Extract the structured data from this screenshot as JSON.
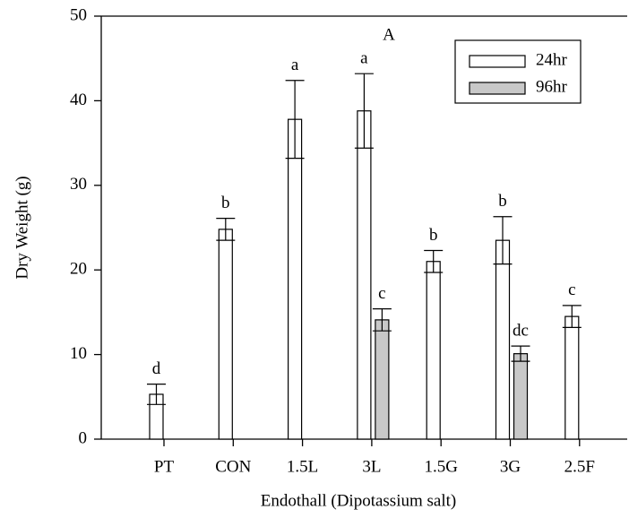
{
  "chart_data": {
    "type": "bar",
    "panel_label": "A",
    "x_label": "Endothall (Dipotassium salt)",
    "y_label": "Dry Weight (g)",
    "categories": [
      "PT",
      "CON",
      "1.5L",
      "3L",
      "1.5G",
      "3G",
      "2.5F"
    ],
    "series": [
      {
        "name": "24hr",
        "color": "#ffffff",
        "values": [
          5.3,
          24.8,
          37.8,
          38.8,
          21.0,
          23.5,
          14.5
        ],
        "errors": [
          1.2,
          1.3,
          4.6,
          4.4,
          1.3,
          2.8,
          1.3
        ],
        "letters": [
          "d",
          "b",
          "a",
          "a",
          "b",
          "b",
          "c"
        ]
      },
      {
        "name": "96hr",
        "color": "#c8c8c8",
        "values": [
          null,
          null,
          null,
          14.1,
          null,
          10.1,
          null
        ],
        "errors": [
          null,
          null,
          null,
          1.3,
          null,
          0.9,
          null
        ],
        "letters": [
          null,
          null,
          null,
          "c",
          null,
          "dc",
          null
        ]
      }
    ],
    "ylim": [
      0,
      50
    ],
    "yticks": [
      0,
      10,
      20,
      30,
      40,
      50
    ],
    "legend": "top-right"
  }
}
